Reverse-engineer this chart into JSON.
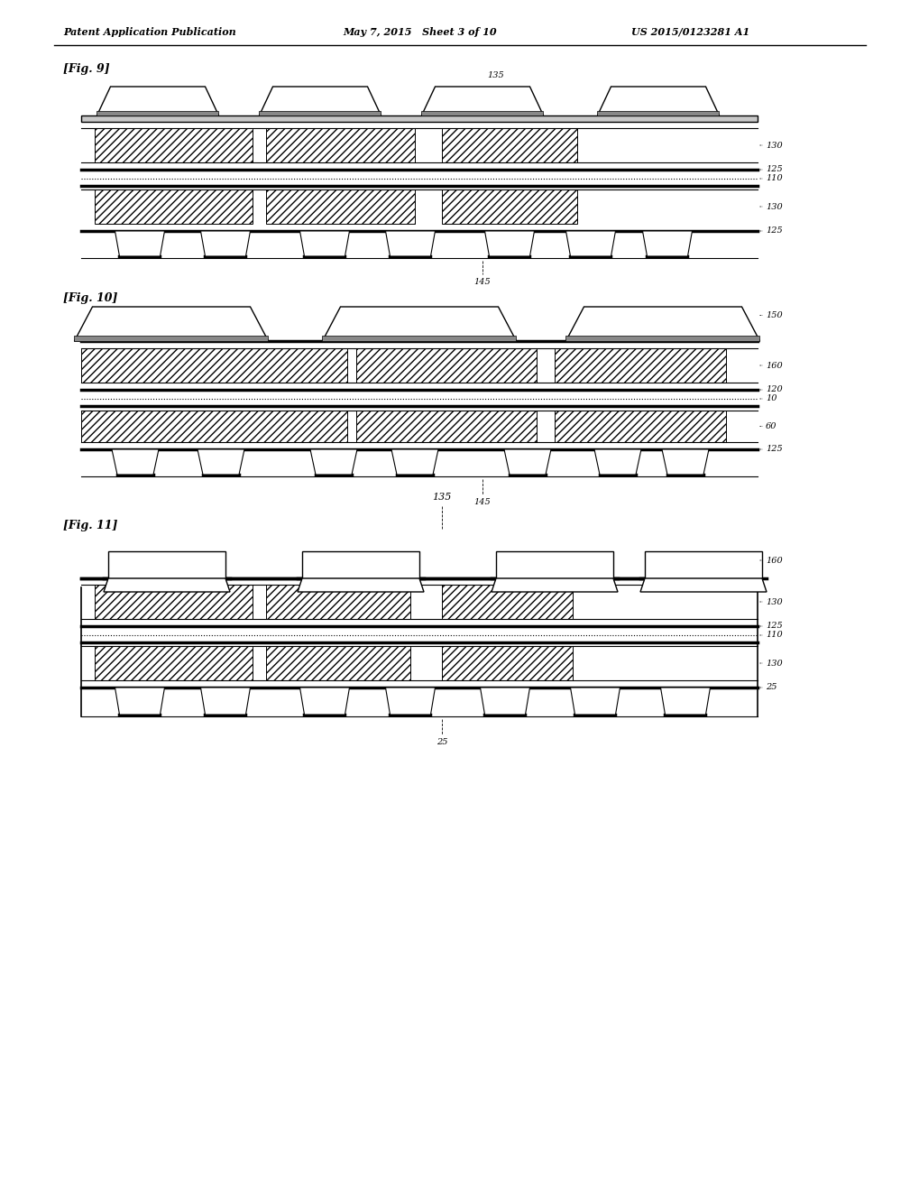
{
  "header_left": "Patent Application Publication",
  "header_mid": "May 7, 2015   Sheet 3 of 10",
  "header_right": "US 2015/0123281 A1",
  "bg_color": "#ffffff",
  "fig9_label": "[Fig. 9]",
  "fig10_label": "[Fig. 10]",
  "fig11_label": "[Fig. 11]"
}
